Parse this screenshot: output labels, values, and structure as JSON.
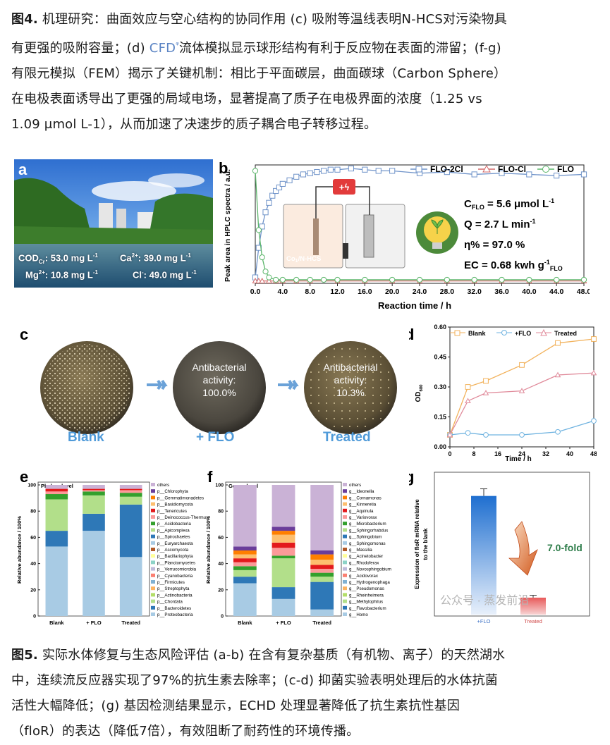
{
  "caption4": {
    "fig_label": "图4.",
    "line1": " 机理研究：曲面效应与空心结构的协同作用 (c) 吸附等温线表明N-HCS对污染物具",
    "line2a": "有更强的吸附容量；(d) ",
    "cfd": "CFD",
    "line2b": "流体模拟显示球形结构有利于反应物在表面的滞留；(f-g)",
    "line3": "有限元模拟（FEM）揭示了关键机制：相比于平面碳层，曲面碳球（Carbon Sphere）",
    "line4": "在电极表面诱导出了更强的局域电场，显著提高了质子在电极界面的浓度（1.25 vs",
    "line5": "1.09 μmol L-1），从而加速了决速步的质子耦合电子转移过程。"
  },
  "panel_a": {
    "label": "a",
    "cod": "COD",
    "cod_sub": "Cr",
    "cod_val": ": 53.0 mg L",
    "ca": "Ca",
    "ca_sup": "2+",
    "ca_val": ": 39.0 mg L",
    "mg": "Mg",
    "mg_sup": "2+",
    "mg_val": ": 10.8 mg L",
    "cl": "Cl",
    "cl_sup": "-",
    "cl_val": ": 49.0 mg L",
    "neg1": "-1"
  },
  "panel_b": {
    "label": "b",
    "ylabel": "Peak area in HPLC spectra / a.u.",
    "xlabel": "Reaction time / h",
    "legend": [
      "FLO-2Cl",
      "FLO-Cl",
      "FLO"
    ],
    "reactor_label": "Co",
    "reactor_label_sub": "1",
    "reactor_label_tail": "/N-HCS",
    "cflo": "C",
    "cflo_sub": "FLO",
    "cflo_val": " = 5.6 μmol L",
    "q_line": "Q = 2.7 L min",
    "eta_line": "η% = 97.0 %",
    "ec": "EC = 0.68 kwh g",
    "ec_sub": "FLO",
    "sup_neg1": "-1"
  },
  "panel_c": {
    "label": "c",
    "plates": [
      {
        "caption": "Blank",
        "text": ""
      },
      {
        "caption": "+ FLO",
        "text1": "Antibacterial",
        "text2": "activity:",
        "text3": "100.0%"
      },
      {
        "caption": "Treated",
        "text1": "Antibacterial",
        "text2": "activity:",
        "text3": "10.3%"
      }
    ]
  },
  "panel_d": {
    "label": "d",
    "ylabel": "OD",
    "ylabel_sub": "600",
    "xlabel": "Time / h"
  },
  "panel_e": {
    "label": "e",
    "ylabel": "Relative abundance / 100%",
    "level": "Phylum level",
    "legend": [
      "others",
      "p__Chlorophyta",
      "p__Gemmatimonadetes",
      "p__Basidiomycota",
      "p__Tenericutes",
      "p__Deinococcus-Thermus",
      "p__Acidobacteria",
      "p__Apicomplexa",
      "p__Spirochaetes",
      "p__Euryarchaeota",
      "p__Ascomycota",
      "p__Bacillariophyta",
      "p__Planctomycetes",
      "p__Verrucomicrobia",
      "p__Cyanobacteria",
      "p__Firmicutes",
      "p__Streptophyta",
      "p__Actinobacteria",
      "p__Chordata",
      "p__Bacteroidetes",
      "p__Proteobacteria"
    ]
  },
  "panel_f": {
    "label": "f",
    "ylabel": "Relative abundance / 100%",
    "level": "Genus level",
    "legend": [
      "others",
      "g__Ideonella",
      "g__Cornamonas",
      "g__Kinneretia",
      "g__Aquinula",
      "g__Variovorax",
      "g__Microbacterium",
      "g__Sphingorhabdus",
      "g__Sphingobium",
      "g__Sphingomonas",
      "g__Massilia",
      "g__Acinetobacter",
      "g__Rhodoferax",
      "g__Novosphingobium",
      "g__Acidovorax",
      "g__Hydrogenophaga",
      "g__Pseudomonas",
      "g__Rheinheimera",
      "g__Methylophilus",
      "g__Flavobacterium",
      "g__Homo"
    ]
  },
  "panel_g": {
    "label": "g",
    "ylabel1": "Expression of floR mRNA relative",
    "ylabel2": "to the blank",
    "fold": "7.0-fold",
    "watermark": "公众号 · 蒸发前沿"
  },
  "chart_data": [
    {
      "type": "line",
      "panel": "b",
      "xlabel": "Reaction time / h",
      "ylabel": "Peak area in HPLC spectra / a.u.",
      "x_ticks": [
        "0.0",
        "4.0",
        "8.0",
        "12.0",
        "16.0",
        "20.0",
        "24.0",
        "28.0",
        "32.0",
        "36.0",
        "40.0",
        "44.0",
        "48.0"
      ],
      "xlim": [
        0,
        48
      ],
      "ylim": [
        0,
        1
      ],
      "series": [
        {
          "name": "FLO-2Cl",
          "color": "#6f93c9",
          "x": [
            0,
            0.5,
            1,
            1.5,
            2,
            2.5,
            3,
            3.5,
            4,
            5,
            6,
            7,
            8,
            9,
            10,
            11,
            12,
            14,
            16,
            18,
            20,
            24,
            28,
            32,
            36,
            40,
            44,
            48
          ],
          "y": [
            0.05,
            0.3,
            0.48,
            0.6,
            0.68,
            0.74,
            0.78,
            0.81,
            0.84,
            0.87,
            0.9,
            0.92,
            0.93,
            0.94,
            0.95,
            0.96,
            0.96,
            0.97,
            0.96,
            0.95,
            0.95,
            0.93,
            0.94,
            0.92,
            0.93,
            0.92,
            0.91,
            0.92
          ]
        },
        {
          "name": "FLO-Cl",
          "color": "#d36a6a",
          "x": [
            0,
            0.5,
            1,
            2,
            3,
            4,
            6,
            8,
            12,
            16,
            20,
            24,
            28,
            32,
            36,
            40,
            44,
            48
          ],
          "y": [
            0.02,
            0.02,
            0.02,
            0.02,
            0.02,
            0.02,
            0.02,
            0.02,
            0.02,
            0.02,
            0.02,
            0.02,
            0.02,
            0.02,
            0.02,
            0.02,
            0.02,
            0.02
          ]
        },
        {
          "name": "FLO",
          "color": "#5bb56a",
          "x": [
            0,
            0.5,
            1,
            1.5,
            2,
            3,
            4,
            6,
            8,
            10,
            12,
            16,
            20,
            24,
            28,
            32,
            36,
            40,
            44,
            48
          ],
          "y": [
            0.95,
            0.45,
            0.22,
            0.1,
            0.05,
            0.03,
            0.03,
            0.03,
            0.03,
            0.03,
            0.03,
            0.03,
            0.03,
            0.03,
            0.03,
            0.03,
            0.03,
            0.03,
            0.03,
            0.03
          ]
        }
      ]
    },
    {
      "type": "line",
      "panel": "d",
      "xlabel": "Time / h",
      "ylabel": "OD600",
      "x_ticks": [
        0,
        8,
        16,
        24,
        32,
        40,
        48
      ],
      "y_ticks": [
        "0.00",
        "0.15",
        "0.30",
        "0.45",
        "0.60"
      ],
      "xlim": [
        0,
        48
      ],
      "ylim": [
        0,
        0.6
      ],
      "series": [
        {
          "name": "Blank",
          "color": "#f2b25c",
          "x": [
            0,
            6,
            12,
            24,
            36,
            48
          ],
          "y": [
            0.06,
            0.3,
            0.33,
            0.41,
            0.52,
            0.54
          ]
        },
        {
          "name": "+FLO",
          "color": "#6fb3e0",
          "x": [
            0,
            6,
            12,
            24,
            36,
            48
          ],
          "y": [
            0.06,
            0.07,
            0.06,
            0.06,
            0.075,
            0.13
          ]
        },
        {
          "name": "Treated",
          "color": "#e08a9a",
          "x": [
            0,
            6,
            12,
            24,
            36,
            48
          ],
          "y": [
            0.06,
            0.23,
            0.27,
            0.28,
            0.36,
            0.37
          ]
        }
      ]
    },
    {
      "type": "bar",
      "panel": "e",
      "stacked": true,
      "categories": [
        "Blank",
        "+ FLO",
        "Treated"
      ],
      "y_ticks": [
        0,
        20,
        40,
        60,
        80,
        100
      ],
      "ylim": [
        0,
        100
      ],
      "series": [
        {
          "name": "p__Proteobacteria",
          "color": "#a8cbe4",
          "values": [
            53,
            65,
            45
          ]
        },
        {
          "name": "p__Bacteroidetes",
          "color": "#2e78b7",
          "values": [
            12,
            13,
            40
          ]
        },
        {
          "name": "p__Chordata",
          "color": "#b2df8a",
          "values": [
            24,
            14,
            6
          ]
        },
        {
          "name": "p__Actinobacteria",
          "color": "#33a02c",
          "values": [
            4,
            3,
            3
          ]
        },
        {
          "name": "p__Streptophyta",
          "color": "#fb9a99",
          "values": [
            2,
            1,
            2
          ]
        },
        {
          "name": "p__Firmicutes",
          "color": "#e31a1c",
          "values": [
            2,
            1,
            1
          ]
        },
        {
          "name": "others",
          "color": "#cab2d6",
          "values": [
            3,
            3,
            3
          ]
        }
      ]
    },
    {
      "type": "bar",
      "panel": "f",
      "stacked": true,
      "categories": [
        "Blank",
        "+ FLO",
        "Treated"
      ],
      "y_ticks": [
        0,
        20,
        40,
        60,
        80,
        100
      ],
      "ylim": [
        0,
        100
      ],
      "series": [
        {
          "name": "g__Homo",
          "color": "#a8cbe4",
          "values": [
            25,
            13,
            5
          ]
        },
        {
          "name": "g__Flavobacterium",
          "color": "#2e78b7",
          "values": [
            5,
            9,
            21
          ]
        },
        {
          "name": "g__Methylophilus",
          "color": "#b2df8a",
          "values": [
            5,
            22,
            4
          ]
        },
        {
          "name": "g__Rheinheimera",
          "color": "#33a02c",
          "values": [
            3,
            2,
            3
          ]
        },
        {
          "name": "g__Pseudomonas",
          "color": "#fb9a99",
          "values": [
            3,
            6,
            3
          ]
        },
        {
          "name": "g__Hydrogenophaga",
          "color": "#e31a1c",
          "values": [
            3,
            4,
            3
          ]
        },
        {
          "name": "g__Acidovorax",
          "color": "#fdbf6f",
          "values": [
            3,
            6,
            4
          ]
        },
        {
          "name": "g__Novosphingobium",
          "color": "#ff7f00",
          "values": [
            3,
            3,
            4
          ]
        },
        {
          "name": "g__Rhodoferax",
          "color": "#6a3d9a",
          "values": [
            3,
            3,
            3
          ]
        },
        {
          "name": "others",
          "color": "#cab2d6",
          "values": [
            47,
            32,
            50
          ]
        }
      ]
    },
    {
      "type": "bar",
      "panel": "g",
      "categories": [
        "+FLO",
        "Treated"
      ],
      "values": [
        10.0,
        1.43
      ],
      "errors": [
        0.6,
        0.2
      ],
      "ylabel": "Expression of floR mRNA relative to the blank",
      "annotation": "7.0-fold"
    }
  ],
  "caption5": {
    "fig_label": "图5.",
    "line1": " 实际水体修复与生态风险评估 (a-b) 在含有复杂基质（有机物、离子）的天然湖水",
    "line2": "中，连续流反应器实现了97%的抗生素去除率；(c-d) 抑菌实验表明处理后的水体抗菌",
    "line3": "活性大幅降低；(g) 基因检测结果显示，ECHD 处理显著降低了抗生素抗性基因",
    "line4": "（floR）的表达（降低7倍），有效阻断了耐药性的环境传播。"
  }
}
